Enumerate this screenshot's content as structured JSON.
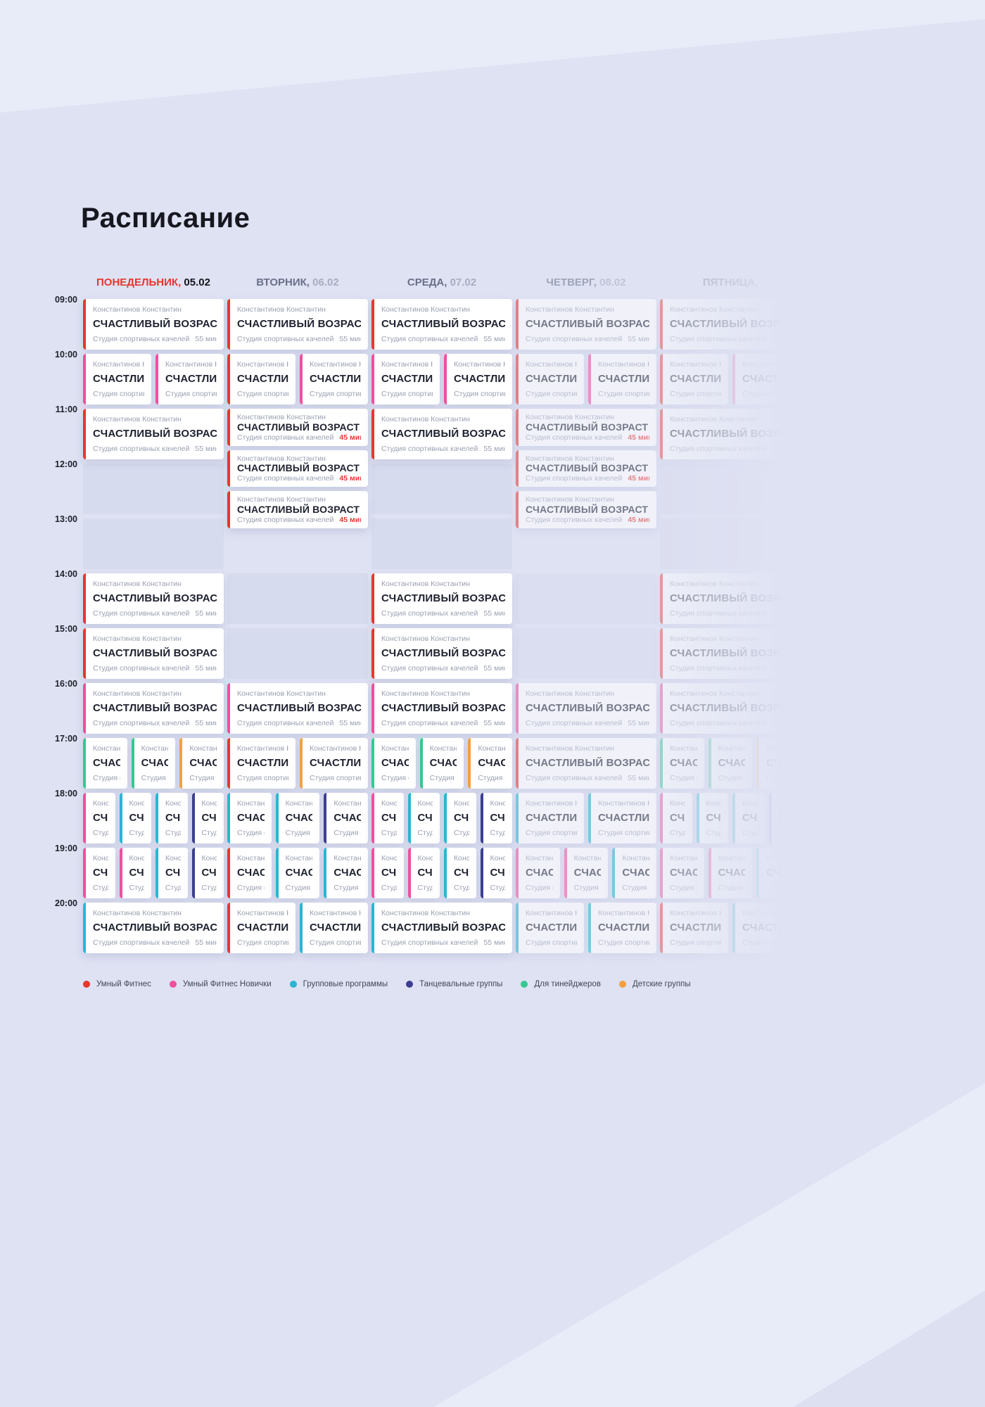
{
  "page": {
    "title": "Расписание"
  },
  "colors": {
    "smart": "#e6372e",
    "smart_new": "#f04f9d",
    "group": "#29b6d2",
    "dance": "#3c3f90",
    "teen": "#36c890",
    "kids": "#f2a03f"
  },
  "card": {
    "trainer": "Константинов Константин",
    "title": "СЧАСТЛИВЫЙ ВОЗРАСТ",
    "studio": "Студия спортивных качелей"
  },
  "durations": {
    "full": "55 мин",
    "short": "45 мин"
  },
  "days": [
    {
      "name": "ПОНЕДЕЛЬНИК,",
      "date": "05.02",
      "active": true,
      "fade": 1
    },
    {
      "name": "ВТОРНИК,",
      "date": "06.02",
      "active": false,
      "fade": 1
    },
    {
      "name": "СРЕДА,",
      "date": "07.02",
      "active": false,
      "fade": 1
    },
    {
      "name": "ЧЕТВЕРГ,",
      "date": "08.02",
      "active": false,
      "fade": 0.55
    },
    {
      "name": "ПЯТНИЦА,",
      "date": "",
      "active": false,
      "fade": 0.45
    }
  ],
  "times": [
    "09:00",
    "10:00",
    "11:00",
    "12:00",
    "13:00",
    "14:00",
    "15:00",
    "16:00",
    "17:00",
    "18:00",
    "19:00",
    "20:00"
  ],
  "legend": [
    {
      "label": "Умный Фитнес",
      "color_key": "smart"
    },
    {
      "label": "Умный Фитнес Новички",
      "color_key": "smart_new"
    },
    {
      "label": "Групповые программы",
      "color_key": "group"
    },
    {
      "label": "Танцевальные группы",
      "color_key": "dance"
    },
    {
      "label": "Для тинейджеров",
      "color_key": "teen"
    },
    {
      "label": "Детские группы",
      "color_key": "kids"
    }
  ],
  "events_format": "[day_index, start_hour_decimal, duration_min, color_key, slot_index, slot_count]",
  "events": [
    [
      0,
      9,
      55,
      "smart",
      0,
      1
    ],
    [
      1,
      9,
      55,
      "smart",
      0,
      1
    ],
    [
      2,
      9,
      55,
      "smart",
      0,
      1
    ],
    [
      3,
      9,
      55,
      "smart",
      0,
      1
    ],
    [
      4,
      9,
      55,
      "smart",
      0,
      1
    ],
    [
      0,
      10,
      55,
      "smart_new",
      0,
      2
    ],
    [
      0,
      10,
      55,
      "smart_new",
      1,
      2
    ],
    [
      1,
      10,
      55,
      "smart",
      0,
      2
    ],
    [
      1,
      10,
      55,
      "smart_new",
      1,
      2
    ],
    [
      2,
      10,
      55,
      "smart_new",
      0,
      2
    ],
    [
      2,
      10,
      55,
      "smart_new",
      1,
      2
    ],
    [
      3,
      10,
      55,
      "smart",
      0,
      2
    ],
    [
      3,
      10,
      55,
      "smart_new",
      1,
      2
    ],
    [
      4,
      10,
      55,
      "smart",
      0,
      2
    ],
    [
      4,
      10,
      55,
      "smart_new",
      1,
      2
    ],
    [
      0,
      11,
      55,
      "smart",
      0,
      1
    ],
    [
      1,
      11,
      45,
      "smart",
      0,
      1
    ],
    [
      1,
      11.75,
      45,
      "smart",
      0,
      1
    ],
    [
      1,
      12.5,
      45,
      "smart",
      0,
      1
    ],
    [
      2,
      11,
      55,
      "smart",
      0,
      1
    ],
    [
      3,
      11,
      45,
      "smart",
      0,
      1
    ],
    [
      3,
      11.75,
      45,
      "smart",
      0,
      1
    ],
    [
      3,
      12.5,
      45,
      "smart",
      0,
      1
    ],
    [
      4,
      11,
      55,
      "smart",
      0,
      1
    ],
    [
      0,
      14,
      55,
      "smart",
      0,
      1
    ],
    [
      2,
      14,
      55,
      "smart",
      0,
      1
    ],
    [
      4,
      14,
      55,
      "smart",
      0,
      1
    ],
    [
      0,
      15,
      55,
      "smart",
      0,
      1
    ],
    [
      2,
      15,
      55,
      "smart",
      0,
      1
    ],
    [
      4,
      15,
      55,
      "smart",
      0,
      1
    ],
    [
      0,
      16,
      55,
      "smart_new",
      0,
      1
    ],
    [
      1,
      16,
      55,
      "smart_new",
      0,
      1
    ],
    [
      2,
      16,
      55,
      "smart_new",
      0,
      1
    ],
    [
      3,
      16,
      55,
      "smart_new",
      0,
      1
    ],
    [
      4,
      16,
      55,
      "smart_new",
      0,
      1
    ],
    [
      0,
      17,
      55,
      "teen",
      0,
      3
    ],
    [
      0,
      17,
      55,
      "teen",
      1,
      3
    ],
    [
      0,
      17,
      55,
      "kids",
      2,
      3
    ],
    [
      1,
      17,
      55,
      "smart",
      0,
      2
    ],
    [
      1,
      17,
      55,
      "kids",
      1,
      2
    ],
    [
      2,
      17,
      55,
      "teen",
      0,
      3
    ],
    [
      2,
      17,
      55,
      "teen",
      1,
      3
    ],
    [
      2,
      17,
      55,
      "kids",
      2,
      3
    ],
    [
      3,
      17,
      55,
      "smart",
      0,
      1
    ],
    [
      4,
      17,
      55,
      "teen",
      0,
      3
    ],
    [
      4,
      17,
      55,
      "teen",
      1,
      3
    ],
    [
      4,
      17,
      55,
      "kids",
      2,
      3
    ],
    [
      0,
      18,
      55,
      "smart_new",
      0,
      4
    ],
    [
      0,
      18,
      55,
      "group",
      1,
      4
    ],
    [
      0,
      18,
      55,
      "group",
      2,
      4
    ],
    [
      0,
      18,
      55,
      "dance",
      3,
      4
    ],
    [
      1,
      18,
      55,
      "group",
      0,
      3
    ],
    [
      1,
      18,
      55,
      "group",
      1,
      3
    ],
    [
      1,
      18,
      55,
      "dance",
      2,
      3
    ],
    [
      2,
      18,
      55,
      "smart_new",
      0,
      4
    ],
    [
      2,
      18,
      55,
      "group",
      1,
      4
    ],
    [
      2,
      18,
      55,
      "group",
      2,
      4
    ],
    [
      2,
      18,
      55,
      "dance",
      3,
      4
    ],
    [
      3,
      18,
      55,
      "group",
      0,
      2
    ],
    [
      3,
      18,
      55,
      "group",
      1,
      2
    ],
    [
      4,
      18,
      55,
      "smart_new",
      0,
      4
    ],
    [
      4,
      18,
      55,
      "group",
      1,
      4
    ],
    [
      4,
      18,
      55,
      "group",
      2,
      4
    ],
    [
      4,
      18,
      55,
      "dance",
      3,
      4
    ],
    [
      0,
      19,
      55,
      "smart_new",
      0,
      4
    ],
    [
      0,
      19,
      55,
      "smart_new",
      1,
      4
    ],
    [
      0,
      19,
      55,
      "group",
      2,
      4
    ],
    [
      0,
      19,
      55,
      "dance",
      3,
      4
    ],
    [
      1,
      19,
      55,
      "smart",
      0,
      3
    ],
    [
      1,
      19,
      55,
      "group",
      1,
      3
    ],
    [
      1,
      19,
      55,
      "group",
      2,
      3
    ],
    [
      2,
      19,
      55,
      "smart_new",
      0,
      4
    ],
    [
      2,
      19,
      55,
      "smart_new",
      1,
      4
    ],
    [
      2,
      19,
      55,
      "group",
      2,
      4
    ],
    [
      2,
      19,
      55,
      "dance",
      3,
      4
    ],
    [
      3,
      19,
      55,
      "smart_new",
      0,
      3
    ],
    [
      3,
      19,
      55,
      "smart_new",
      1,
      3
    ],
    [
      3,
      19,
      55,
      "group",
      2,
      3
    ],
    [
      4,
      19,
      55,
      "smart_new",
      0,
      3
    ],
    [
      4,
      19,
      55,
      "smart_new",
      1,
      3
    ],
    [
      4,
      19,
      55,
      "group",
      2,
      3
    ],
    [
      0,
      20,
      55,
      "group",
      0,
      1
    ],
    [
      1,
      20,
      55,
      "smart",
      0,
      2
    ],
    [
      1,
      20,
      55,
      "group",
      1,
      2
    ],
    [
      2,
      20,
      55,
      "group",
      0,
      1
    ],
    [
      3,
      20,
      55,
      "group",
      0,
      2
    ],
    [
      3,
      20,
      55,
      "group",
      1,
      2
    ],
    [
      4,
      20,
      55,
      "smart",
      0,
      2
    ],
    [
      4,
      20,
      55,
      "group",
      1,
      2
    ]
  ],
  "empty_slots_format": "[day_index, hour]",
  "empty_slots": [
    [
      0,
      12
    ],
    [
      2,
      12
    ],
    [
      4,
      12
    ],
    [
      0,
      13
    ],
    [
      2,
      13
    ],
    [
      4,
      13
    ],
    [
      1,
      14
    ],
    [
      3,
      14
    ],
    [
      1,
      15
    ],
    [
      3,
      15
    ]
  ]
}
